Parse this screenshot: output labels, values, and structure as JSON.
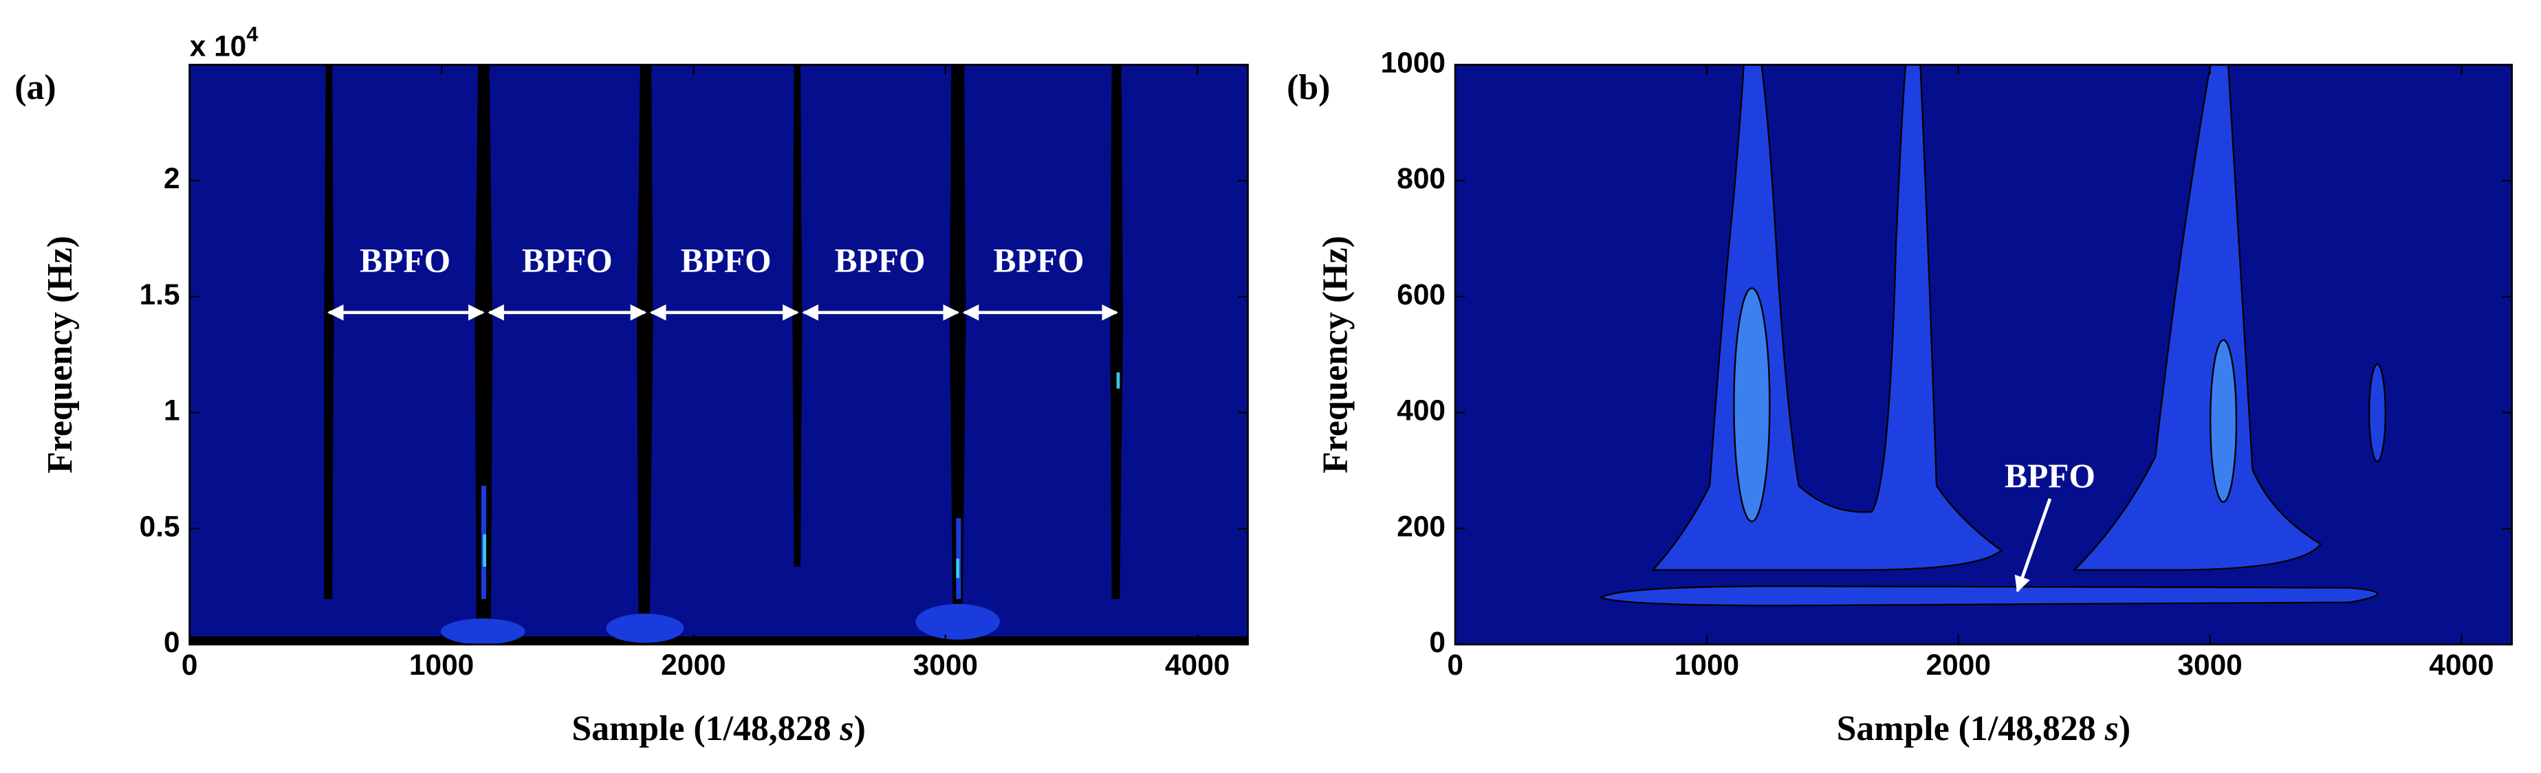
{
  "chart_data": [
    {
      "type": "contour",
      "panel_label": "(a)",
      "ylabel": "Frequency (Hz)",
      "xlabel_parts": [
        "Sample (1/48,828 ",
        "s",
        ")"
      ],
      "y_multiplier": {
        "base": "x 10",
        "exponent": "4"
      },
      "xlim": [
        0,
        4200
      ],
      "ylim": [
        0,
        2.5
      ],
      "xticks": [
        0,
        1000,
        2000,
        3000,
        4000
      ],
      "yticks": [
        0,
        0.5,
        1,
        1.5,
        2
      ],
      "annotations": [
        "BPFO",
        "BPFO",
        "BPFO",
        "BPFO",
        "BPFO"
      ]
    },
    {
      "type": "contour",
      "panel_label": "(b)",
      "ylabel": "Frequency (Hz)",
      "xlabel_parts": [
        "Sample  (1/48,828 ",
        "s",
        ")"
      ],
      "xlim": [
        0,
        4200
      ],
      "ylim": [
        0,
        1000
      ],
      "xticks": [
        0,
        1000,
        2000,
        3000,
        4000
      ],
      "yticks": [
        0,
        200,
        400,
        600,
        800,
        1000
      ],
      "annotations": [
        "BPFO"
      ]
    }
  ]
}
